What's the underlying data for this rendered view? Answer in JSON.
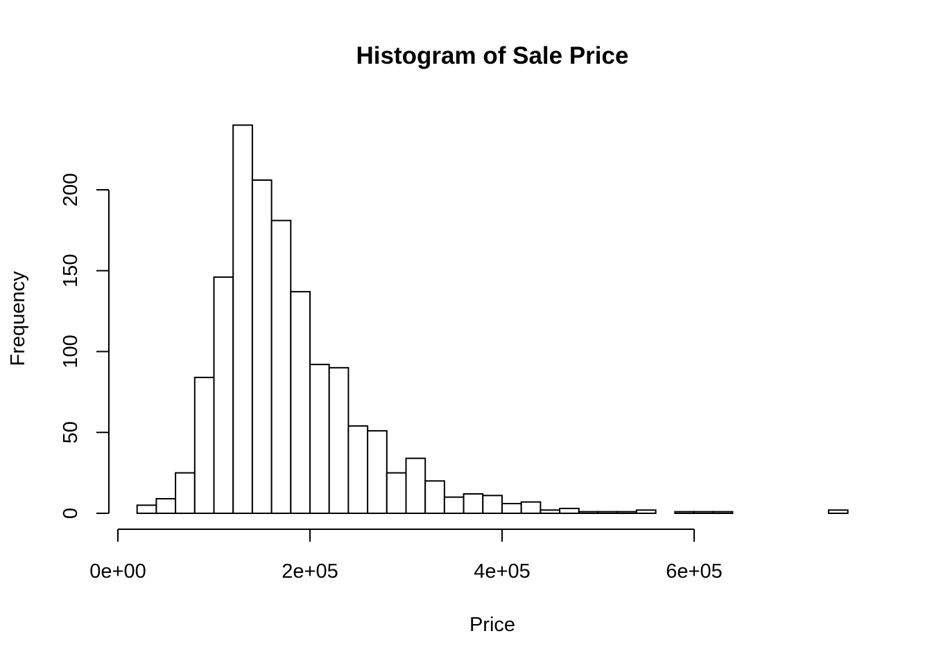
{
  "chart_data": {
    "type": "bar",
    "title": "Histogram of Sale Price",
    "xlabel": "Price",
    "ylabel": "Frequency",
    "bin_width": 20000,
    "bin_starts": [
      20000,
      40000,
      60000,
      80000,
      100000,
      120000,
      140000,
      160000,
      180000,
      200000,
      220000,
      240000,
      260000,
      280000,
      300000,
      320000,
      340000,
      360000,
      380000,
      400000,
      420000,
      440000,
      460000,
      480000,
      500000,
      520000,
      540000,
      560000,
      580000,
      600000,
      620000,
      640000,
      660000,
      680000,
      700000,
      720000,
      740000
    ],
    "values": [
      5,
      9,
      25,
      84,
      146,
      240,
      206,
      181,
      137,
      92,
      90,
      54,
      51,
      25,
      34,
      20,
      10,
      12,
      11,
      6,
      7,
      2,
      3,
      1,
      1,
      1,
      2,
      0,
      1,
      1,
      1,
      0,
      0,
      0,
      0,
      0,
      2
    ],
    "xlim": [
      0,
      760000
    ],
    "ylim": [
      0,
      240
    ],
    "x_ticks": [
      0,
      200000,
      400000,
      600000
    ],
    "x_tick_labels": [
      "0e+00",
      "2e+05",
      "4e+05",
      "6e+05"
    ],
    "y_ticks": [
      0,
      50,
      100,
      150,
      200
    ],
    "y_tick_labels": [
      "0",
      "50",
      "100",
      "150",
      "200"
    ],
    "bar_fill": "#ffffff",
    "bar_stroke": "#000000",
    "grid": false,
    "legend": "none"
  }
}
